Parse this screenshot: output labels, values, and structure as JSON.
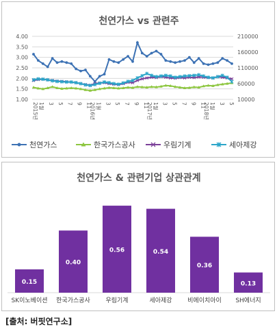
{
  "source": "[출처: 버핏연구소]",
  "chart_data": [
    {
      "type": "line",
      "title": "천연가스 vs 관련주",
      "x_labels": [
        "1월",
        "3",
        "5",
        "7",
        "9",
        "11",
        "1월",
        "3",
        "5",
        "7",
        "9",
        "11",
        "1월",
        "3",
        "5",
        "7",
        "9",
        "11",
        "1월",
        "3",
        "5"
      ],
      "year_labels": [
        "2015년",
        "2016년",
        "2017년",
        "2018년"
      ],
      "left_axis": {
        "ticks": [
          "4.00",
          "3.50",
          "3.00",
          "2.50",
          "2.00",
          "1.50",
          "1.00"
        ],
        "range": [
          1.0,
          4.0
        ]
      },
      "right_axis": {
        "ticks": [
          "210000",
          "160000",
          "110000",
          "60000",
          "10000"
        ],
        "range": [
          10000,
          210000
        ]
      },
      "series": [
        {
          "name": "천연가스",
          "axis": "left",
          "color": "#3d72b4",
          "marker": "circle",
          "values": [
            3.15,
            2.85,
            2.7,
            2.55,
            2.95,
            2.75,
            2.8,
            2.75,
            2.7,
            2.45,
            2.35,
            2.4,
            2.1,
            1.85,
            2.1,
            2.2,
            2.9,
            2.8,
            2.75,
            2.9,
            3.05,
            2.8,
            3.7,
            3.2,
            3.05,
            3.2,
            3.3,
            3.15,
            2.85,
            2.8,
            2.75,
            2.8,
            2.85,
            3.0,
            2.75,
            2.95,
            2.7,
            2.65,
            2.7,
            2.75,
            2.95,
            2.85,
            2.7
          ]
        },
        {
          "name": "한국가스공사",
          "axis": "right",
          "color": "#8dc63f",
          "marker": "triangle",
          "values": [
            48000,
            45000,
            43000,
            46000,
            50000,
            46000,
            44000,
            45000,
            46000,
            45000,
            43000,
            40000,
            38000,
            40000,
            43000,
            45000,
            47000,
            46000,
            45000,
            46000,
            48000,
            47000,
            50000,
            49000,
            48000,
            50000,
            49000,
            51000,
            54000,
            53000,
            50000,
            48000,
            46000,
            47000,
            49000,
            48000,
            52000,
            54000,
            53000,
            56000,
            58000,
            60000,
            62000
          ]
        },
        {
          "name": "우림기계",
          "axis": "right",
          "color": "#7b3f99",
          "marker": "x",
          "values": [
            70000,
            73000,
            74000,
            72000,
            70000,
            68000,
            67000,
            66000,
            65000,
            63000,
            60000,
            57000,
            55000,
            60000,
            62000,
            63000,
            60000,
            58000,
            57000,
            60000,
            64000,
            63000,
            70000,
            75000,
            78000,
            80000,
            79000,
            82000,
            80000,
            78000,
            77000,
            79000,
            78000,
            80000,
            79000,
            81000,
            80000,
            79000,
            78000,
            82000,
            80000,
            78000,
            75000
          ]
        },
        {
          "name": "세아제강",
          "axis": "right",
          "color": "#2aa5c9",
          "marker": "star",
          "values": [
            72000,
            75000,
            74000,
            72000,
            69000,
            67000,
            66000,
            65000,
            65000,
            63000,
            60000,
            56000,
            54000,
            57000,
            61000,
            65000,
            63000,
            60000,
            58000,
            62000,
            67000,
            70000,
            78000,
            85000,
            92000,
            86000,
            82000,
            84000,
            86000,
            84000,
            80000,
            82000,
            84000,
            85000,
            86000,
            88000,
            84000,
            80000,
            78000,
            82000,
            86000,
            80000,
            66000
          ]
        }
      ],
      "ylabel": "",
      "xlabel": ""
    },
    {
      "type": "bar",
      "title": "천연가스 & 관련기업 상관관계",
      "categories": [
        "SK이노베이션",
        "한국가스공사",
        "우림기계",
        "세아제강",
        "비에이치아이",
        "SH에너지"
      ],
      "values": [
        0.15,
        0.4,
        0.56,
        0.54,
        0.36,
        0.13
      ],
      "value_labels": [
        "0.15",
        "0.40",
        "0.56",
        "0.54",
        "0.36",
        "0.13"
      ],
      "bar_color": "#7030a0",
      "ylim": [
        0,
        0.6
      ]
    }
  ]
}
